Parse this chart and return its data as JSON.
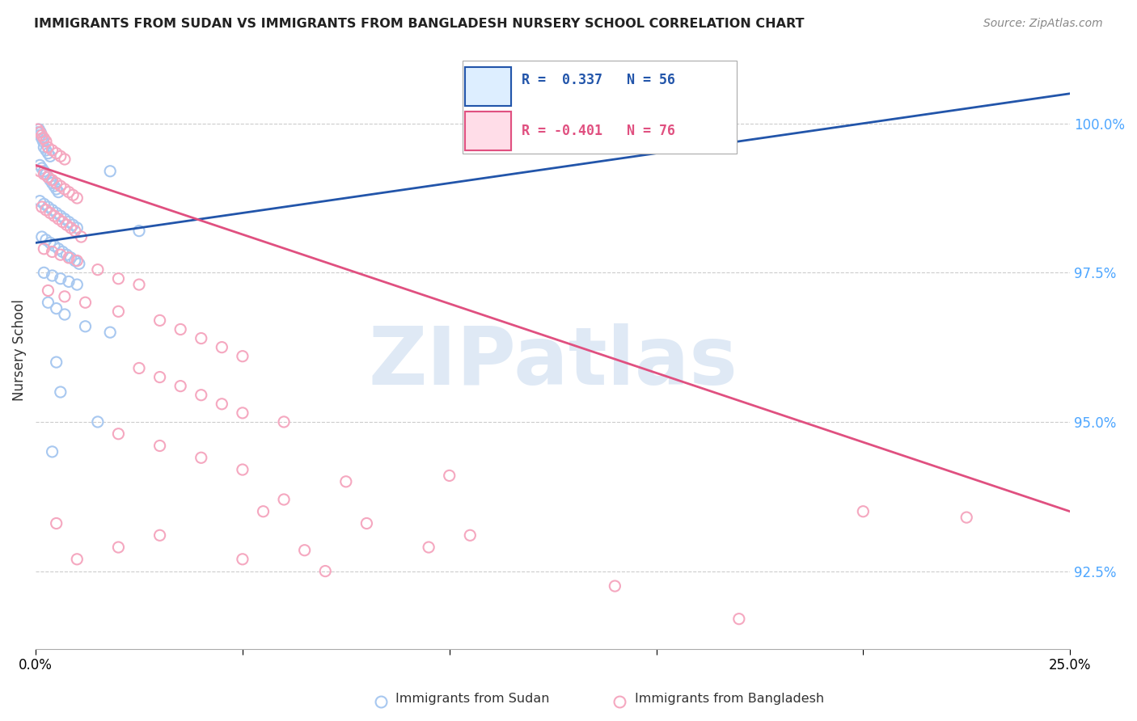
{
  "title": "IMMIGRANTS FROM SUDAN VS IMMIGRANTS FROM BANGLADESH NURSERY SCHOOL CORRELATION CHART",
  "source": "Source: ZipAtlas.com",
  "ylabel": "Nursery School",
  "legend_sudan": "Immigrants from Sudan",
  "legend_bangladesh": "Immigrants from Bangladesh",
  "R_sudan": 0.337,
  "N_sudan": 56,
  "R_bangladesh": -0.401,
  "N_bangladesh": 76,
  "sudan_color": "#a8c8f0",
  "bangladesh_color": "#f5a8c0",
  "sudan_line_color": "#2255aa",
  "bangladesh_line_color": "#e05080",
  "watermark": "ZIPatlas",
  "xlim": [
    0.0,
    25.0
  ],
  "ylim": [
    91.2,
    101.2
  ],
  "ytick_values": [
    92.5,
    95.0,
    97.5,
    100.0
  ],
  "sudan_points": [
    [
      0.05,
      99.85
    ],
    [
      0.08,
      99.9
    ],
    [
      0.1,
      99.8
    ],
    [
      0.12,
      99.85
    ],
    [
      0.15,
      99.75
    ],
    [
      0.18,
      99.7
    ],
    [
      0.2,
      99.6
    ],
    [
      0.25,
      99.55
    ],
    [
      0.3,
      99.5
    ],
    [
      0.35,
      99.45
    ],
    [
      0.1,
      99.3
    ],
    [
      0.15,
      99.25
    ],
    [
      0.2,
      99.2
    ],
    [
      0.25,
      99.15
    ],
    [
      0.3,
      99.1
    ],
    [
      0.35,
      99.05
    ],
    [
      0.4,
      99.0
    ],
    [
      0.45,
      98.95
    ],
    [
      0.5,
      98.9
    ],
    [
      0.55,
      98.85
    ],
    [
      0.1,
      98.7
    ],
    [
      0.2,
      98.65
    ],
    [
      0.3,
      98.6
    ],
    [
      0.4,
      98.55
    ],
    [
      0.5,
      98.5
    ],
    [
      0.6,
      98.45
    ],
    [
      0.7,
      98.4
    ],
    [
      0.8,
      98.35
    ],
    [
      0.9,
      98.3
    ],
    [
      1.0,
      98.25
    ],
    [
      0.15,
      98.1
    ],
    [
      0.25,
      98.05
    ],
    [
      0.35,
      98.0
    ],
    [
      0.45,
      97.95
    ],
    [
      0.55,
      97.9
    ],
    [
      0.65,
      97.85
    ],
    [
      0.75,
      97.8
    ],
    [
      0.85,
      97.75
    ],
    [
      0.95,
      97.7
    ],
    [
      1.05,
      97.65
    ],
    [
      0.2,
      97.5
    ],
    [
      0.4,
      97.45
    ],
    [
      0.6,
      97.4
    ],
    [
      0.8,
      97.35
    ],
    [
      1.0,
      97.3
    ],
    [
      0.3,
      97.0
    ],
    [
      0.5,
      96.9
    ],
    [
      0.7,
      96.8
    ],
    [
      1.2,
      96.6
    ],
    [
      1.8,
      96.5
    ],
    [
      0.5,
      96.0
    ],
    [
      0.6,
      95.5
    ],
    [
      1.5,
      95.0
    ],
    [
      0.4,
      94.5
    ],
    [
      2.5,
      98.2
    ],
    [
      1.8,
      99.2
    ]
  ],
  "bangladesh_points": [
    [
      0.05,
      99.9
    ],
    [
      0.1,
      99.85
    ],
    [
      0.15,
      99.8
    ],
    [
      0.2,
      99.75
    ],
    [
      0.25,
      99.7
    ],
    [
      0.3,
      99.6
    ],
    [
      0.4,
      99.55
    ],
    [
      0.5,
      99.5
    ],
    [
      0.6,
      99.45
    ],
    [
      0.7,
      99.4
    ],
    [
      0.1,
      99.2
    ],
    [
      0.2,
      99.15
    ],
    [
      0.3,
      99.1
    ],
    [
      0.4,
      99.05
    ],
    [
      0.5,
      99.0
    ],
    [
      0.6,
      98.95
    ],
    [
      0.7,
      98.9
    ],
    [
      0.8,
      98.85
    ],
    [
      0.9,
      98.8
    ],
    [
      1.0,
      98.75
    ],
    [
      0.15,
      98.6
    ],
    [
      0.25,
      98.55
    ],
    [
      0.35,
      98.5
    ],
    [
      0.45,
      98.45
    ],
    [
      0.55,
      98.4
    ],
    [
      0.65,
      98.35
    ],
    [
      0.75,
      98.3
    ],
    [
      0.85,
      98.25
    ],
    [
      0.95,
      98.2
    ],
    [
      1.1,
      98.1
    ],
    [
      0.2,
      97.9
    ],
    [
      0.4,
      97.85
    ],
    [
      0.6,
      97.8
    ],
    [
      0.8,
      97.75
    ],
    [
      1.0,
      97.7
    ],
    [
      1.5,
      97.55
    ],
    [
      2.0,
      97.4
    ],
    [
      2.5,
      97.3
    ],
    [
      0.3,
      97.2
    ],
    [
      0.7,
      97.1
    ],
    [
      1.2,
      97.0
    ],
    [
      2.0,
      96.85
    ],
    [
      3.0,
      96.7
    ],
    [
      3.5,
      96.55
    ],
    [
      4.0,
      96.4
    ],
    [
      4.5,
      96.25
    ],
    [
      5.0,
      96.1
    ],
    [
      2.5,
      95.9
    ],
    [
      3.0,
      95.75
    ],
    [
      3.5,
      95.6
    ],
    [
      4.0,
      95.45
    ],
    [
      4.5,
      95.3
    ],
    [
      5.0,
      95.15
    ],
    [
      6.0,
      95.0
    ],
    [
      2.0,
      94.8
    ],
    [
      3.0,
      94.6
    ],
    [
      4.0,
      94.4
    ],
    [
      5.0,
      94.2
    ],
    [
      7.5,
      94.0
    ],
    [
      6.0,
      93.7
    ],
    [
      5.5,
      93.5
    ],
    [
      0.5,
      93.3
    ],
    [
      3.0,
      93.1
    ],
    [
      2.0,
      92.9
    ],
    [
      5.0,
      92.7
    ],
    [
      8.0,
      93.3
    ],
    [
      6.5,
      92.85
    ],
    [
      9.5,
      92.9
    ],
    [
      1.0,
      92.7
    ],
    [
      7.0,
      92.5
    ],
    [
      14.0,
      92.25
    ],
    [
      20.0,
      93.5
    ],
    [
      17.0,
      91.7
    ],
    [
      10.5,
      93.1
    ],
    [
      22.5,
      93.4
    ],
    [
      10.0,
      94.1
    ]
  ],
  "sudan_line_x": [
    0.0,
    25.0
  ],
  "sudan_line_y": [
    98.0,
    100.5
  ],
  "bangladesh_line_x": [
    0.0,
    25.0
  ],
  "bangladesh_line_y": [
    99.3,
    93.5
  ]
}
